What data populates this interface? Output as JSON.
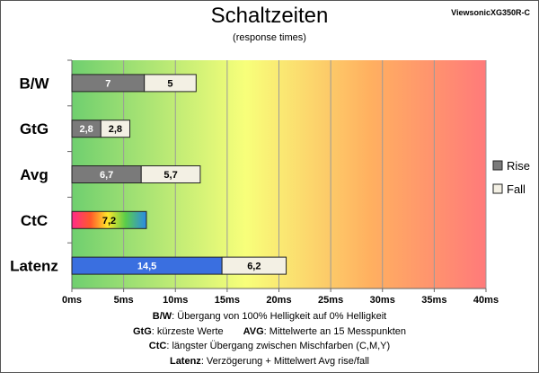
{
  "device": "ViewsonicXG350R-C",
  "chart_data": {
    "type": "bar",
    "orientation": "horizontal",
    "stacked": true,
    "title": "Schaltzeiten",
    "subtitle": "(response times)",
    "categories": [
      "B/W",
      "GtG",
      "Avg",
      "CtC",
      "Latenz"
    ],
    "series": [
      {
        "name": "Rise",
        "values": [
          7,
          2.8,
          6.7,
          7.2,
          14.5
        ],
        "labels": [
          "7",
          "2,8",
          "6,7",
          "7,2",
          "14,5"
        ]
      },
      {
        "name": "Fall",
        "values": [
          5,
          2.8,
          5.7,
          null,
          6.2
        ],
        "labels": [
          "5",
          "2,8",
          "5,7",
          "",
          "6,2"
        ]
      }
    ],
    "xlim": [
      0,
      40
    ],
    "xticks": [
      0,
      5,
      10,
      15,
      20,
      25,
      30,
      35,
      40
    ],
    "xtick_labels": [
      "0ms",
      "5ms",
      "10ms",
      "15ms",
      "20ms",
      "25ms",
      "30ms",
      "35ms",
      "40ms"
    ],
    "grid": true,
    "legend_position": "right",
    "background_gradient": [
      "#6fcf6f",
      "#f8ff7a",
      "#ffb060",
      "#ff7a7a"
    ],
    "colors": {
      "rise": "#7a7a7a",
      "fall": "#f3f0e4",
      "latenz_rise": "#3a6fe0",
      "text_light": "#ffffff"
    }
  },
  "notes": [
    {
      "term": "B/W",
      "text": ":  Übergang von 100% Helligkeit auf 0% Helligkeit"
    },
    {
      "term": "GtG",
      "text": ": kürzeste  Werte",
      "term2": "AVG",
      "text2": ": Mittelwerte  an 15 Messpunkten"
    },
    {
      "term": "CtC",
      "text": ": längster Übergang  zwischen Mischfarben  (C,M,Y)"
    },
    {
      "term": "Latenz",
      "text": ": Verzögerung  + Mittelwert Avg rise/fall"
    }
  ]
}
